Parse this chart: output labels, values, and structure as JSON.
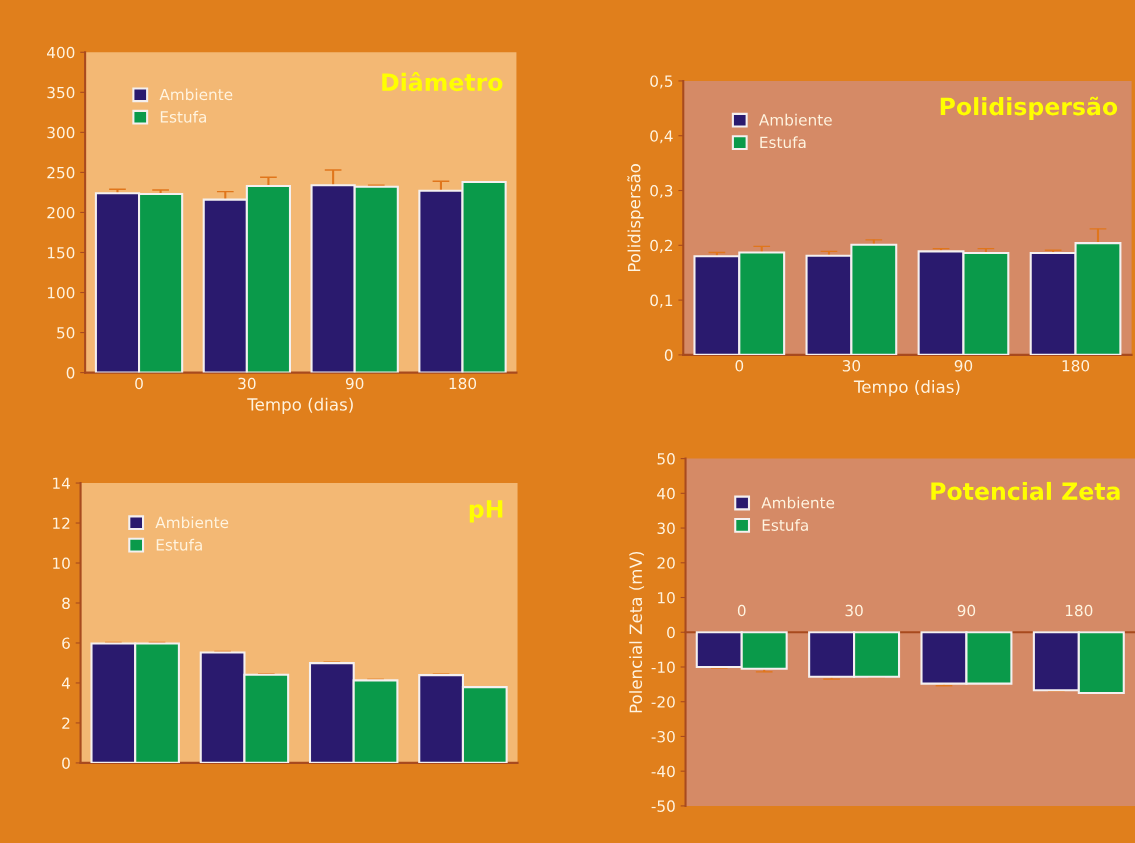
{
  "chart_data": [
    {
      "type": "bar",
      "title": "Diâmetro",
      "xlabel": "Tempo (dias)",
      "categories": [
        "0",
        "30",
        "90",
        "180"
      ],
      "ylim": [
        0,
        400
      ],
      "yticks": [
        0,
        50,
        100,
        150,
        200,
        250,
        300,
        350,
        400
      ],
      "legend": "top left",
      "grid": false,
      "series": [
        {
          "name": "Ambiente",
          "color": "#2a1a6e",
          "values": [
            224,
            216,
            234,
            227
          ],
          "errors": [
            5,
            10,
            19,
            12
          ]
        },
        {
          "name": "Estufa",
          "color": "#0a9a4a",
          "values": [
            223,
            233,
            232,
            238
          ],
          "errors": [
            5,
            11,
            2,
            null
          ]
        }
      ]
    },
    {
      "type": "bar",
      "title": "Polidispersão",
      "xlabel": "Tempo (dias)",
      "ylabel": "Polidispersão",
      "categories": [
        "0",
        "30",
        "90",
        "180"
      ],
      "ylim": [
        0,
        0.5
      ],
      "yticks": [
        {
          "value": 0,
          "label": "0"
        },
        {
          "value": 0.1,
          "label": "0,1"
        },
        {
          "value": 0.2,
          "label": "0,2"
        },
        {
          "value": 0.3,
          "label": "0,3"
        },
        {
          "value": 0.4,
          "label": "0,4"
        },
        {
          "value": 0.5,
          "label": "0,5"
        }
      ],
      "legend": "top left",
      "grid": false,
      "series": [
        {
          "name": "Ambiente",
          "color": "#2a1a6e",
          "values": [
            0.18,
            0.181,
            0.189,
            0.186
          ],
          "errors": [
            0.007,
            0.008,
            0.005,
            0.005
          ]
        },
        {
          "name": "Estufa",
          "color": "#0a9a4a",
          "values": [
            0.187,
            0.201,
            0.186,
            0.204
          ],
          "errors": [
            0.011,
            0.009,
            0.008,
            0.026
          ]
        }
      ]
    },
    {
      "type": "bar",
      "title": "pH",
      "categories": [
        null,
        null,
        null,
        null
      ],
      "ylim": [
        0,
        14
      ],
      "yticks": [
        0,
        2,
        4,
        6,
        8,
        10,
        12,
        14
      ],
      "legend": "top left",
      "grid": false,
      "series": [
        {
          "name": "Ambiente",
          "color": "#2a1a6e",
          "values": [
            5.97,
            5.52,
            4.99,
            4.39
          ],
          "errors": [
            0.05,
            0.05,
            0.05,
            0.05
          ]
        },
        {
          "name": "Estufa",
          "color": "#0a9a4a",
          "values": [
            5.97,
            4.41,
            4.13,
            3.79
          ],
          "errors": [
            0.05,
            0.05,
            0.05,
            null
          ]
        }
      ]
    },
    {
      "type": "bar",
      "title": "Potencial Zeta",
      "ylabel": "Polencial Zeta (mV)",
      "categories": [
        "0",
        "30",
        "90",
        "180"
      ],
      "ylim": [
        -50,
        50
      ],
      "yticks": [
        -50,
        -40,
        -30,
        -20,
        -10,
        0,
        10,
        20,
        30,
        40,
        50
      ],
      "legend": "top left",
      "grid": false,
      "series": [
        {
          "name": "Ambiente",
          "color": "#2a1a6e",
          "values": [
            -10.0,
            -12.8,
            -14.8,
            -16.7
          ],
          "errors": [
            0.3,
            0.7,
            0.6,
            0.2
          ]
        },
        {
          "name": "Estufa",
          "color": "#0a9a4a",
          "values": [
            -10.5,
            -12.8,
            -14.8,
            -17.5
          ],
          "errors": [
            0.9,
            0.2,
            null,
            null
          ]
        }
      ]
    }
  ]
}
